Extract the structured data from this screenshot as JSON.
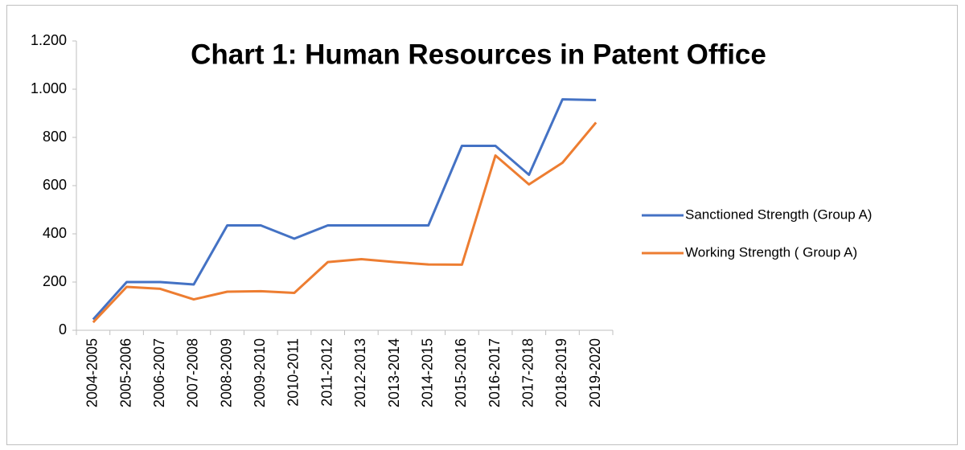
{
  "chart_data": {
    "type": "line",
    "title": "Chart 1: Human Resources in Patent Office",
    "categories": [
      "2004-2005",
      "2005-2006",
      "2006-2007",
      "2007-2008",
      "2008-2009",
      "2009-2010",
      "2010-2011",
      "2011-2012",
      "2012-2013",
      "2013-2014",
      "2014-2015",
      "2015-2016",
      "2016-2017",
      "2017-2018",
      "2018-2019",
      "2019-2020"
    ],
    "series": [
      {
        "name": "Sanctioned Strength (Group A)",
        "color": "#4472c4",
        "values": [
          45,
          200,
          200,
          190,
          435,
          435,
          380,
          435,
          435,
          435,
          435,
          765,
          765,
          645,
          958,
          955
        ]
      },
      {
        "name": "Working Strength ( Group A)",
        "color": "#ed7d31",
        "values": [
          33,
          180,
          172,
          128,
          160,
          162,
          155,
          283,
          295,
          283,
          273,
          272,
          725,
          605,
          695,
          862
        ]
      }
    ],
    "ylim": [
      0,
      1200
    ],
    "yticks": [
      0,
      200,
      400,
      600,
      800,
      {
        "value": 1000,
        "label": "1.000"
      },
      {
        "value": 1200,
        "label": "1.200"
      }
    ],
    "legend": "right"
  }
}
